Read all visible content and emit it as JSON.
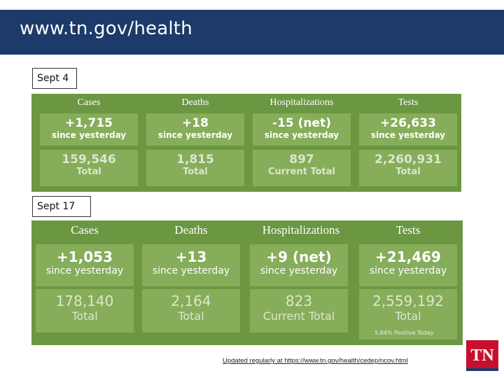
{
  "header": {
    "title": "www.tn.gov/health"
  },
  "colors": {
    "header_bg": "#1c3a6a",
    "panel_bg": "#6b9642",
    "tile_bg": "#86ad5a",
    "logo_red": "#c8102e"
  },
  "sections": [
    {
      "label": "Sept 4",
      "columns": [
        {
          "heading": "Cases",
          "change": "+1,715",
          "change_sub": "since yesterday",
          "total": "159,546",
          "total_sub": "Total"
        },
        {
          "heading": "Deaths",
          "change": "+18",
          "change_sub": "since yesterday",
          "total": "1,815",
          "total_sub": "Total"
        },
        {
          "heading": "Hospitalizations",
          "change": "-15 (net)",
          "change_sub": "since yesterday",
          "total": "897",
          "total_sub": "Current Total"
        },
        {
          "heading": "Tests",
          "change": "+26,633",
          "change_sub": "since yesterday",
          "total": "2,260,931",
          "total_sub": "Total"
        }
      ]
    },
    {
      "label": "Sept 17",
      "columns": [
        {
          "heading": "Cases",
          "change": "+1,053",
          "change_sub": "since yesterday",
          "total": "178,140",
          "total_sub": "Total"
        },
        {
          "heading": "Deaths",
          "change": "+13",
          "change_sub": "since yesterday",
          "total": "2,164",
          "total_sub": "Total"
        },
        {
          "heading": "Hospitalizations",
          "change": "+9 (net)",
          "change_sub": "since yesterday",
          "total": "823",
          "total_sub": "Current Total"
        },
        {
          "heading": "Tests",
          "change": "+21,469",
          "change_sub": "since yesterday",
          "total": "2,559,192",
          "total_sub": "Total"
        }
      ],
      "note": "5.84% Positive Today"
    }
  ],
  "footer": {
    "link_text": "Updated regularly at https://www.tn.gov/health/cedep/ncov.html"
  },
  "logo": {
    "text": "TN"
  }
}
